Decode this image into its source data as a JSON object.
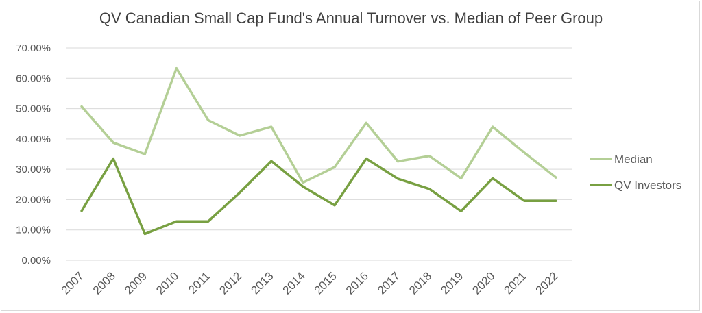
{
  "chart_data": {
    "type": "line",
    "title": "QV Canadian Small Cap Fund's Annual Turnover vs. Median of Peer Group",
    "categories": [
      "2007",
      "2008",
      "2009",
      "2010",
      "2011",
      "2012",
      "2013",
      "2014",
      "2015",
      "2016",
      "2017",
      "2018",
      "2019",
      "2020",
      "2021",
      "2022"
    ],
    "y_ticks": [
      "0.00%",
      "10.00%",
      "20.00%",
      "30.00%",
      "40.00%",
      "50.00%",
      "60.00%",
      "70.00%"
    ],
    "ylim": [
      0,
      70
    ],
    "grid": true,
    "legend_position": "right",
    "series": [
      {
        "name": "Median",
        "color": "#b4cf96",
        "values": [
          50.7,
          38.8,
          35.0,
          63.3,
          46.2,
          41.1,
          44.0,
          25.6,
          30.7,
          45.3,
          32.6,
          34.4,
          27.0,
          44.0,
          35.5,
          27.3
        ]
      },
      {
        "name": "QV Investors",
        "color": "#78a042",
        "values": [
          16.3,
          33.5,
          8.7,
          12.8,
          12.8,
          22.3,
          32.7,
          24.3,
          18.1,
          33.5,
          26.9,
          23.5,
          16.2,
          27.0,
          19.6,
          19.6
        ]
      }
    ]
  }
}
